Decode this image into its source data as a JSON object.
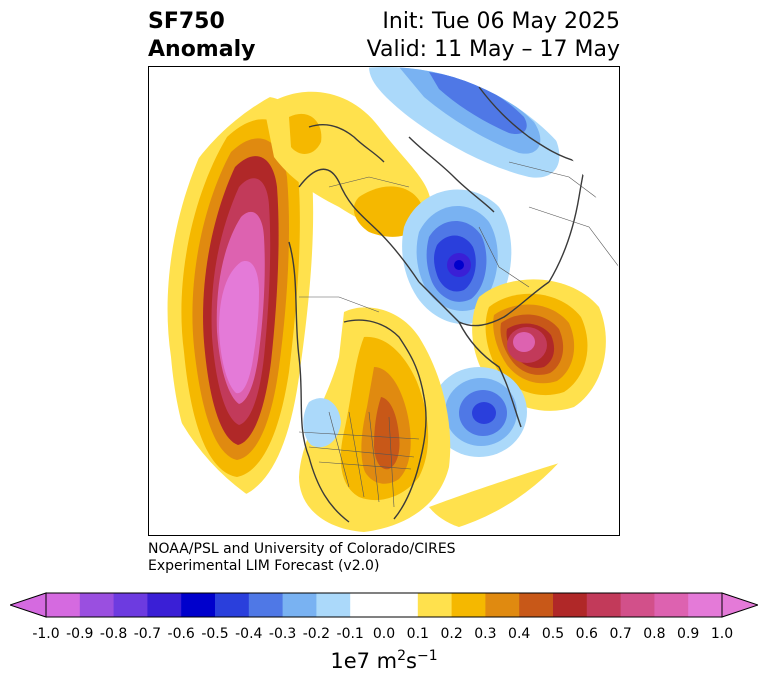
{
  "title": {
    "left_line1": "SF750",
    "left_line2": "Anomaly",
    "right_line1": "Init: Tue 06 May 2025",
    "right_line2": "Valid: 11 May – 17 May"
  },
  "credit": {
    "line1": "NOAA/PSL and University of Colorado/CIRES",
    "line2": "Experimental LIM Forecast (v2.0)"
  },
  "colorbar": {
    "tick_labels": [
      "-1.0",
      "-0.9",
      "-0.8",
      "-0.7",
      "-0.6",
      "-0.5",
      "-0.4",
      "-0.3",
      "-0.2",
      "-0.1",
      "0.0",
      "0.1",
      "0.2",
      "0.3",
      "0.4",
      "0.5",
      "0.6",
      "0.7",
      "0.8",
      "0.9",
      "1.0"
    ],
    "colors": [
      "#d56ae0",
      "#9a4fe0",
      "#6d3be0",
      "#3a1fd6",
      "#0000cc",
      "#2a3fdc",
      "#4f78e6",
      "#79b2f2",
      "#abd9fa",
      "#ffffff",
      "#ffffff",
      "#ffe14d",
      "#f5b800",
      "#e08a10",
      "#c85818",
      "#b02828",
      "#c23a5a",
      "#d2508a",
      "#dd62b0",
      "#e47ad8"
    ],
    "extend_low": "#d56ae0",
    "extend_high": "#e47ad8",
    "units_base": "1e7 m",
    "units_exp1": "2",
    "units_mid": "s",
    "units_exp2": "−1"
  },
  "map": {
    "projection": "north-polar-stereographic",
    "features": [
      "coastlines",
      "country-borders",
      "state-borders"
    ]
  }
}
